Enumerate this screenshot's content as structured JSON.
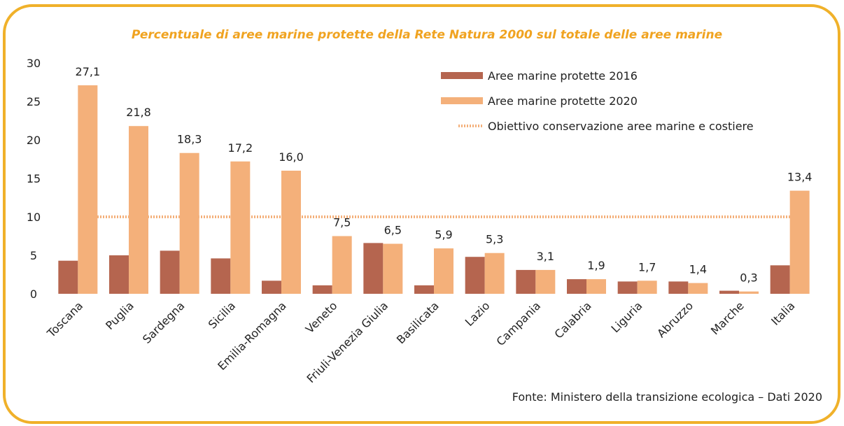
{
  "chart_data": {
    "type": "bar",
    "title": "Percentuale di aree marine protette della Rete Natura 2000 sul totale delle aree marine",
    "source": "Fonte: Ministero della transizione ecologica – Dati 2020",
    "categories": [
      "Toscana",
      "Puglia",
      "Sardegna",
      "Sicilia",
      "Emilia-Romagna",
      "Veneto",
      "Friuli-Venezia Giulia",
      "Basilicata",
      "Lazio",
      "Campania",
      "Calabria",
      "Liguria",
      "Abruzzo",
      "Marche",
      "Italia"
    ],
    "series": [
      {
        "name": "Aree marine protette 2016",
        "color": "#b5654f",
        "values": [
          4.3,
          5.0,
          5.6,
          4.6,
          1.7,
          1.1,
          6.6,
          1.1,
          4.8,
          3.1,
          1.9,
          1.6,
          1.6,
          0.4,
          3.7
        ]
      },
      {
        "name": "Aree marine protette 2020",
        "color": "#f4b07a",
        "values": [
          27.1,
          21.8,
          18.3,
          17.2,
          16.0,
          7.5,
          6.5,
          5.9,
          5.3,
          3.1,
          1.9,
          1.7,
          1.4,
          0.3,
          13.4
        ],
        "value_labels": [
          "27,1",
          "21,8",
          "18,3",
          "17,2",
          "16,0",
          "7,5",
          "6,5",
          "5,9",
          "5,3",
          "3,1",
          "1,9",
          "1,7",
          "1,4",
          "0,3",
          "13,4"
        ]
      }
    ],
    "target": {
      "name": "Obiettivo conservazione aree marine e costiere",
      "value": 10,
      "color": "#f4b07a"
    },
    "ylim": [
      0,
      30
    ],
    "yticks": [
      0,
      5,
      10,
      15,
      20,
      25,
      30
    ]
  }
}
